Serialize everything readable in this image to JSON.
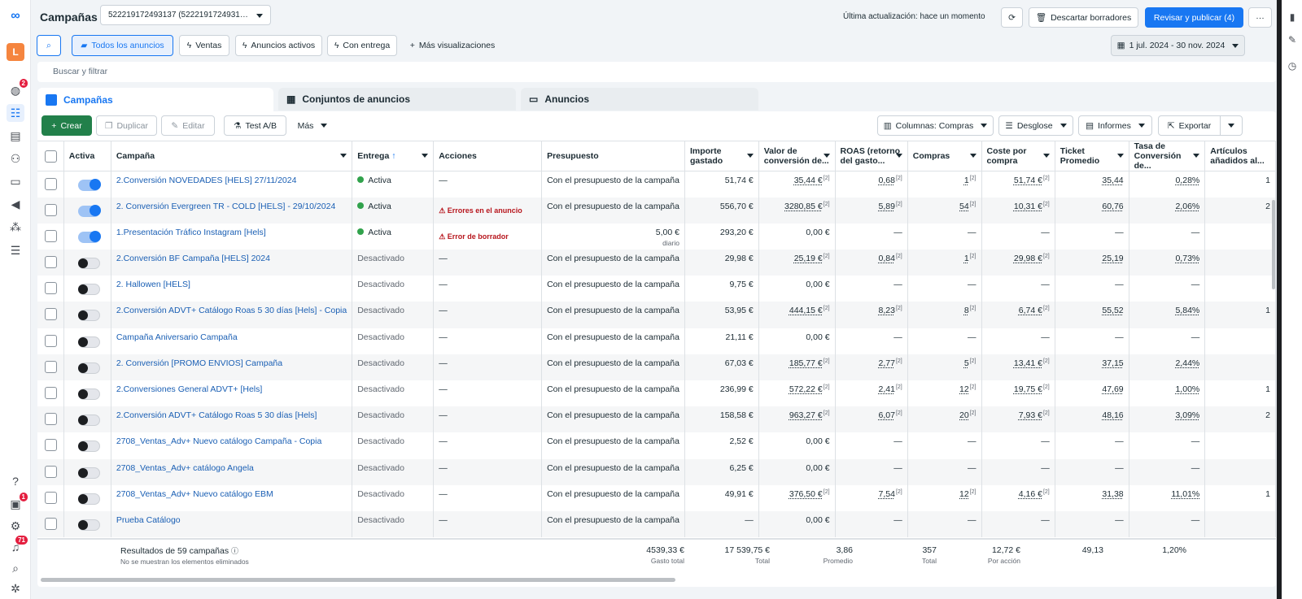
{
  "topbar": {
    "title": "Campañas",
    "account": "522219172493137 (522219172493137)",
    "last_update": "Última actualización: hace un momento",
    "discard": "Descartar borradores",
    "publish": "Revisar y publicar (4)"
  },
  "views": {
    "all": "Todos los anuncios",
    "sales": "Ventas",
    "active": "Anuncios activos",
    "delivery": "Con entrega",
    "more": "Más visualizaciones",
    "date_range": "1 jul. 2024 - 30 nov. 2024"
  },
  "search_placeholder": "Buscar y filtrar",
  "rail": {
    "avatar_letter": "L",
    "badge_1": "2",
    "badge_2": "1",
    "badge_3": "71"
  },
  "tabs": {
    "campaigns": "Campañas",
    "adsets": "Conjuntos de anuncios",
    "ads": "Anuncios"
  },
  "toolbar": {
    "create": "Crear",
    "duplicate": "Duplicar",
    "edit": "Editar",
    "ab_test": "Test A/B",
    "more": "Más",
    "columns": "Columnas: Compras",
    "breakdown": "Desglose",
    "reports": "Informes",
    "export": "Exportar"
  },
  "columns": [
    "Activa",
    "Campaña",
    "Entrega",
    "Acciones",
    "Presupuesto",
    "Importe gastado",
    "Valor de conversión de...",
    "ROAS (retorno del gasto...",
    "Compras",
    "Coste por compra",
    "Ticket Promedio",
    "Tasa de Conversión de...",
    "Artículos añadidos al..."
  ],
  "rows": [
    {
      "on": true,
      "name": "2.Conversión NOVEDADES [HELS] 27/11/2024",
      "delivery": "Activa",
      "action": "—",
      "budget": "Con el presupuesto de la campaña",
      "budget_sub": "",
      "spent": "51,74 €",
      "conv_value": "35,44 €",
      "roas": "0,68",
      "purchases": "1",
      "cpp": "51,74 €",
      "ticket": "35,44",
      "rate": "0,28%",
      "cart": "1"
    },
    {
      "on": true,
      "name": "2. Conversión Evergreen TR - COLD [HELS] - 29/10/2024",
      "delivery": "Activa",
      "action": "Errores en el anuncio",
      "budget": "Con el presupuesto de la campaña",
      "budget_sub": "",
      "spent": "556,70 €",
      "conv_value": "3280,85 €",
      "roas": "5,89",
      "purchases": "54",
      "cpp": "10,31 €",
      "ticket": "60,76",
      "rate": "2,06%",
      "cart": "2"
    },
    {
      "on": true,
      "name": "1.Presentación Tráfico Instagram [Hels]",
      "delivery": "Activa",
      "action": "Error de borrador",
      "budget": "5,00 €",
      "budget_sub": "diario",
      "spent": "293,20 €",
      "conv_value": "0,00 €",
      "roas": "—",
      "purchases": "—",
      "cpp": "—",
      "ticket": "—",
      "rate": "—",
      "cart": ""
    },
    {
      "on": false,
      "name": "2.Conversión BF Campaña [HELS] 2024",
      "delivery": "Desactivado",
      "action": "—",
      "budget": "Con el presupuesto de la campaña",
      "budget_sub": "",
      "spent": "29,98 €",
      "conv_value": "25,19 €",
      "roas": "0,84",
      "purchases": "1",
      "cpp": "29,98 €",
      "ticket": "25,19",
      "rate": "0,73%",
      "cart": ""
    },
    {
      "on": false,
      "name": "2. Hallowen [HELS]",
      "delivery": "Desactivado",
      "action": "—",
      "budget": "Con el presupuesto de la campaña",
      "budget_sub": "",
      "spent": "9,75 €",
      "conv_value": "0,00 €",
      "roas": "—",
      "purchases": "—",
      "cpp": "—",
      "ticket": "—",
      "rate": "—",
      "cart": ""
    },
    {
      "on": false,
      "name": "2.Conversión ADVT+ Catálogo Roas 5 30 días [Hels] - Copia",
      "delivery": "Desactivado",
      "action": "—",
      "budget": "Con el presupuesto de la campaña",
      "budget_sub": "",
      "spent": "53,95 €",
      "conv_value": "444,15 €",
      "roas": "8,23",
      "purchases": "8",
      "cpp": "6,74 €",
      "ticket": "55,52",
      "rate": "5,84%",
      "cart": "1"
    },
    {
      "on": false,
      "name": "Campaña Aniversario Campaña",
      "delivery": "Desactivado",
      "action": "—",
      "budget": "Con el presupuesto de la campaña",
      "budget_sub": "",
      "spent": "21,11 €",
      "conv_value": "0,00 €",
      "roas": "—",
      "purchases": "—",
      "cpp": "—",
      "ticket": "—",
      "rate": "—",
      "cart": ""
    },
    {
      "on": false,
      "name": "2. Conversión [PROMO ENVIOS] Campaña",
      "delivery": "Desactivado",
      "action": "—",
      "budget": "Con el presupuesto de la campaña",
      "budget_sub": "",
      "spent": "67,03 €",
      "conv_value": "185,77 €",
      "roas": "2,77",
      "purchases": "5",
      "cpp": "13,41 €",
      "ticket": "37,15",
      "rate": "2,44%",
      "cart": ""
    },
    {
      "on": false,
      "name": "2.Conversiones General ADVT+ [Hels]",
      "delivery": "Desactivado",
      "action": "—",
      "budget": "Con el presupuesto de la campaña",
      "budget_sub": "",
      "spent": "236,99 €",
      "conv_value": "572,22 €",
      "roas": "2,41",
      "purchases": "12",
      "cpp": "19,75 €",
      "ticket": "47,69",
      "rate": "1,00%",
      "cart": "1"
    },
    {
      "on": false,
      "name": "2.Conversión ADVT+ Catálogo Roas 5 30 días [Hels]",
      "delivery": "Desactivado",
      "action": "—",
      "budget": "Con el presupuesto de la campaña",
      "budget_sub": "",
      "spent": "158,58 €",
      "conv_value": "963,27 €",
      "roas": "6,07",
      "purchases": "20",
      "cpp": "7,93 €",
      "ticket": "48,16",
      "rate": "3,09%",
      "cart": "2"
    },
    {
      "on": false,
      "name": "2708_Ventas_Adv+ Nuevo catálogo Campaña - Copia",
      "delivery": "Desactivado",
      "action": "—",
      "budget": "Con el presupuesto de la campaña",
      "budget_sub": "",
      "spent": "2,52 €",
      "conv_value": "0,00 €",
      "roas": "—",
      "purchases": "—",
      "cpp": "—",
      "ticket": "—",
      "rate": "—",
      "cart": ""
    },
    {
      "on": false,
      "name": "2708_Ventas_Adv+ catálogo Angela",
      "delivery": "Desactivado",
      "action": "—",
      "budget": "Con el presupuesto de la campaña",
      "budget_sub": "",
      "spent": "6,25 €",
      "conv_value": "0,00 €",
      "roas": "—",
      "purchases": "—",
      "cpp": "—",
      "ticket": "—",
      "rate": "—",
      "cart": ""
    },
    {
      "on": false,
      "name": "2708_Ventas_Adv+ Nuevo catálogo EBM",
      "delivery": "Desactivado",
      "action": "—",
      "budget": "Con el presupuesto de la campaña",
      "budget_sub": "",
      "spent": "49,91 €",
      "conv_value": "376,50 €",
      "roas": "7,54",
      "purchases": "12",
      "cpp": "4,16 €",
      "ticket": "31,38",
      "rate": "11,01%",
      "cart": "1"
    },
    {
      "on": false,
      "name": "Prueba Catálogo",
      "delivery": "Desactivado",
      "action": "—",
      "budget": "Con el presupuesto de la campaña",
      "budget_sub": "",
      "spent": "—",
      "conv_value": "0,00 €",
      "roas": "—",
      "purchases": "—",
      "cpp": "—",
      "ticket": "—",
      "rate": "—",
      "cart": ""
    }
  ],
  "footer": {
    "results": "Resultados de 59 campañas",
    "note": "No se muestran los elementos eliminados",
    "spent": "4539,33 €",
    "spent_label": "Gasto total",
    "conv_value": "17 539,75 €",
    "conv_label": "Total",
    "roas": "3,86",
    "roas_label": "Promedio",
    "purchases": "357",
    "purchases_label": "Total",
    "cpp": "12,72 €",
    "cpp_label": "Por acción",
    "ticket": "49,13",
    "rate": "1,20%"
  },
  "colors": {
    "accent": "#1877f2",
    "create": "#22804a",
    "active_dot": "#31a24c",
    "error": "#b7161d"
  }
}
